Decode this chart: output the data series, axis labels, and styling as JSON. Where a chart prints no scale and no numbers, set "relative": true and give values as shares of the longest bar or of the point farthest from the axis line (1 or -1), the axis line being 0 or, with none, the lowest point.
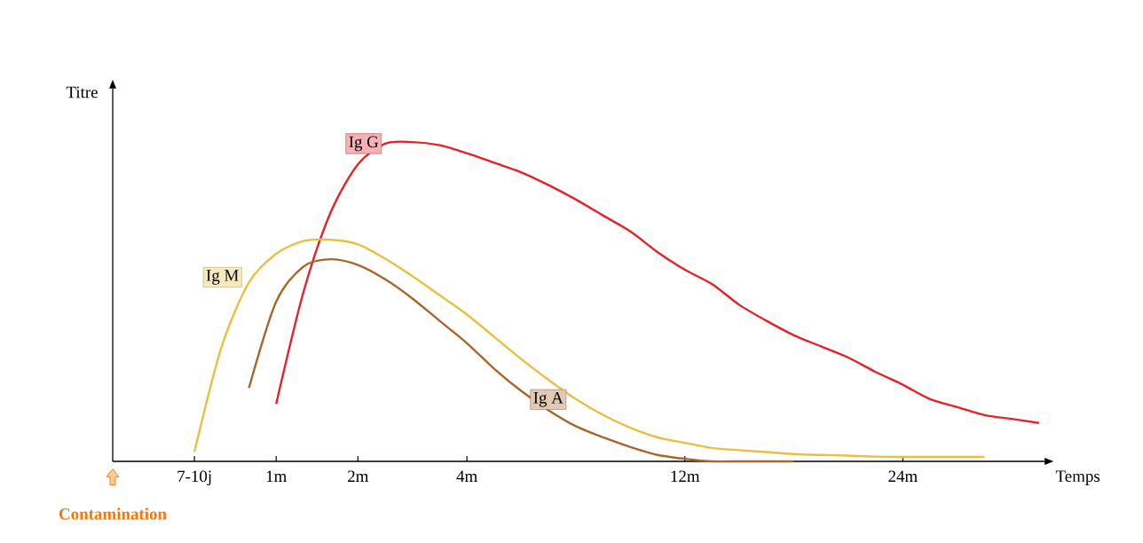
{
  "chart_data": {
    "type": "line",
    "relative": true,
    "xlabel": "Temps",
    "ylabel": "Titre",
    "legend": false,
    "grid": false,
    "marker": "none",
    "line_style": "solid",
    "categories": [
      null,
      null,
      null,
      "7-10j",
      null,
      null,
      "1m",
      null,
      null,
      "2m",
      null,
      null,
      null,
      "4m",
      null,
      null,
      null,
      null,
      null,
      null,
      null,
      "12m",
      null,
      null,
      null,
      null,
      null,
      null,
      null,
      "24m",
      null,
      null,
      null,
      null,
      null
    ],
    "annotations": [
      "Contamination"
    ],
    "series": [
      {
        "name": "Ig G",
        "color": "#e8202a",
        "values": [
          null,
          null,
          null,
          null,
          null,
          null,
          0.18,
          0.53,
          0.78,
          0.93,
          0.995,
          1,
          0.99,
          0.965,
          0.935,
          0.905,
          0.865,
          0.82,
          0.77,
          0.72,
          0.655,
          0.6,
          0.555,
          0.49,
          0.44,
          0.395,
          0.36,
          0.325,
          0.28,
          0.24,
          0.195,
          0.17,
          0.145,
          0.133,
          0.12
        ]
      },
      {
        "name": "Ig M",
        "color": "#e8c040",
        "values": [
          null,
          null,
          null,
          0.03,
          0.36,
          0.56,
          0.65,
          0.69,
          0.694,
          0.68,
          0.635,
          0.58,
          0.52,
          0.46,
          0.39,
          0.32,
          0.255,
          0.195,
          0.145,
          0.105,
          0.075,
          0.058,
          0.042,
          0.035,
          0.029,
          0.023,
          0.02,
          0.018,
          0.015,
          0.014,
          0.014,
          0.014,
          0.014,
          null,
          null
        ]
      },
      {
        "name": "Ig A",
        "color": "#a8662a",
        "values": [
          null,
          null,
          null,
          null,
          null,
          0.23,
          0.5,
          0.61,
          0.633,
          0.615,
          0.57,
          0.51,
          0.44,
          0.37,
          0.29,
          0.22,
          0.16,
          0.11,
          0.075,
          0.045,
          0.02,
          0.008,
          0,
          0,
          0,
          0,
          null,
          null,
          null,
          null,
          null,
          null,
          null,
          null,
          null
        ]
      }
    ]
  }
}
